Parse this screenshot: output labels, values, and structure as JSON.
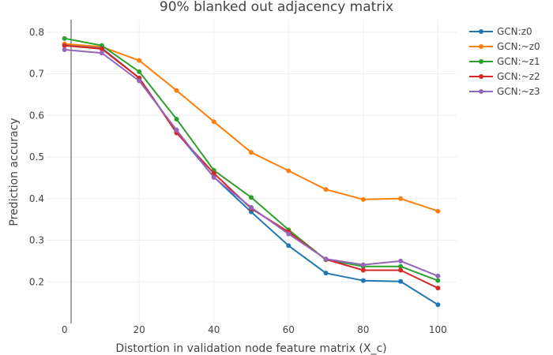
{
  "chart_data": {
    "type": "line",
    "title": "90% blanked out adjacency matrix",
    "xlabel": "Distortion in validation node feature matrix (X_c)",
    "ylabel": "Prediction accuracy",
    "x": [
      0,
      10,
      20,
      30,
      40,
      50,
      60,
      70,
      80,
      90,
      100
    ],
    "xlim": [
      -5,
      105
    ],
    "ylim": [
      0.1,
      0.83
    ],
    "xticks": [
      0,
      20,
      40,
      60,
      80,
      100
    ],
    "yticks": [
      0.2,
      0.3,
      0.4,
      0.5,
      0.6,
      0.7,
      0.8
    ],
    "xtick_labels": [
      "0",
      "20",
      "40",
      "60",
      "80",
      "100"
    ],
    "ytick_labels": [
      "0.2",
      "0.3",
      "0.4",
      "0.5",
      "0.6",
      "0.7",
      "0.8"
    ],
    "grid": true,
    "legend_position": "top-right",
    "series": [
      {
        "name": "GCN:z0",
        "color": "#1f77b4",
        "values": [
          0.77,
          0.762,
          0.69,
          0.56,
          0.452,
          0.368,
          0.287,
          0.221,
          0.203,
          0.201,
          0.145
        ]
      },
      {
        "name": "GCN:~z0",
        "color": "#ff7f0e",
        "values": [
          0.772,
          0.765,
          0.732,
          0.66,
          0.585,
          0.511,
          0.467,
          0.422,
          0.398,
          0.4,
          0.37
        ]
      },
      {
        "name": "GCN:~z1",
        "color": "#2ca02c",
        "values": [
          0.785,
          0.768,
          0.705,
          0.591,
          0.468,
          0.403,
          0.325,
          0.253,
          0.237,
          0.237,
          0.203
        ]
      },
      {
        "name": "GCN:~z2",
        "color": "#d62728",
        "values": [
          0.768,
          0.76,
          0.69,
          0.558,
          0.461,
          0.376,
          0.32,
          0.254,
          0.228,
          0.228,
          0.185
        ]
      },
      {
        "name": "GCN:~z3",
        "color": "#9467bd",
        "values": [
          0.758,
          0.75,
          0.683,
          0.565,
          0.451,
          0.379,
          0.315,
          0.255,
          0.241,
          0.25,
          0.214
        ]
      }
    ]
  }
}
